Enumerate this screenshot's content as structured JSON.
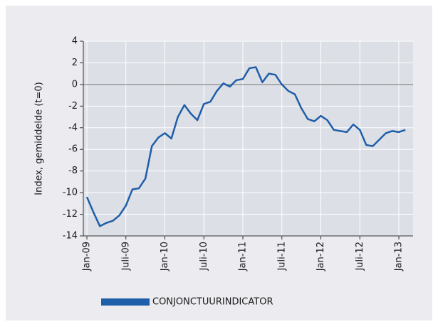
{
  "chart_data": {
    "type": "line",
    "y_label": "Index, gemiddelde (t=0)",
    "categories": [
      "Jan-09",
      null,
      null,
      null,
      null,
      null,
      "Juli-09",
      null,
      null,
      null,
      null,
      null,
      "Jan-10",
      null,
      null,
      null,
      null,
      null,
      "Juli-10",
      null,
      null,
      null,
      null,
      null,
      "Jan-11",
      null,
      null,
      null,
      null,
      null,
      "Juli-11",
      null,
      null,
      null,
      null,
      null,
      "Jan-12",
      null,
      null,
      null,
      null,
      null,
      "Juli-12",
      null,
      null,
      null,
      null,
      null,
      "Jan-13",
      null
    ],
    "series": [
      {
        "name": "CONJONCTUURINDICATOR",
        "color": "#1f5ea8",
        "values": [
          -10.4,
          -11.8,
          -13.1,
          -12.8,
          -12.6,
          -12.1,
          -11.2,
          -9.7,
          -9.6,
          -8.7,
          -5.7,
          -4.9,
          -4.5,
          -5.0,
          -3.0,
          -1.9,
          -2.7,
          -3.3,
          -1.8,
          -1.6,
          -0.6,
          0.1,
          -0.2,
          0.4,
          0.5,
          1.5,
          1.6,
          0.2,
          1.0,
          0.9,
          0.0,
          -0.6,
          -0.9,
          -2.2,
          -3.2,
          -3.4,
          -2.9,
          -3.3,
          -4.2,
          -4.3,
          -4.4,
          -3.7,
          -4.2,
          -5.6,
          -5.7,
          -5.1,
          -4.5,
          -4.3,
          -4.4,
          -4.2
        ]
      }
    ],
    "ylim": [
      -14,
      4
    ],
    "yticks": [
      -14,
      -12,
      -10,
      -8,
      -6,
      -4,
      -2,
      0,
      2,
      4
    ],
    "grid": true,
    "legend": "bottom"
  }
}
